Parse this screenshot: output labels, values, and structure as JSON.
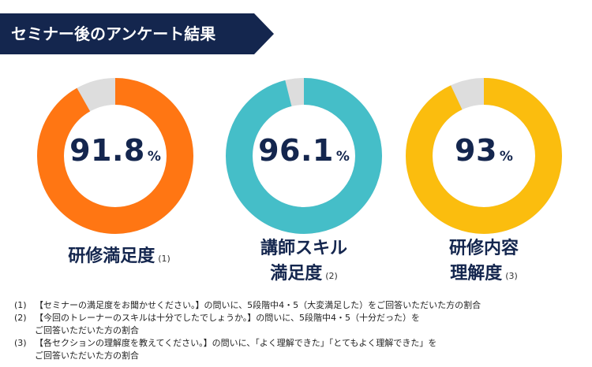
{
  "banner": {
    "title": "セミナー後のアンケート結果"
  },
  "colors": {
    "banner_bg": "#14264e",
    "remainder": "#dddddd",
    "value_text": "#14264e"
  },
  "chart_data": {
    "type": "pie",
    "subtype": "donut",
    "charts": [
      {
        "label": "研修満足度",
        "ref": "(1)",
        "value": 91.8,
        "display": "91.8",
        "unit": "%",
        "color": "#ff7613"
      },
      {
        "label_lines": [
          "講師スキル",
          "満足度"
        ],
        "ref": "(2)",
        "value": 96.1,
        "display": "96.1",
        "unit": "%",
        "color": "#45bec8"
      },
      {
        "label_lines": [
          "研修内容",
          "理解度"
        ],
        "ref": "(3)",
        "value": 93,
        "display": "93",
        "unit": "%",
        "color": "#fbbd0e"
      }
    ]
  },
  "notes": [
    {
      "num": "(1)",
      "text": "【セミナーの満足度をお聞かせください。】の問いに、5段階中4・5（大変満足した）をご回答いただいた方の割合"
    },
    {
      "num": "(2)",
      "text": "【今回のトレーナーのスキルは十分でしたでしょうか。】の問いに、5段階中4・5（十分だった）を",
      "cont": "ご回答いただいた方の割合"
    },
    {
      "num": "(3)",
      "text": "【各セクションの理解度を教えてください。】の問いに、「よく理解できた」「とてもよく理解できた」を",
      "cont": "ご回答いただいた方の割合"
    }
  ]
}
